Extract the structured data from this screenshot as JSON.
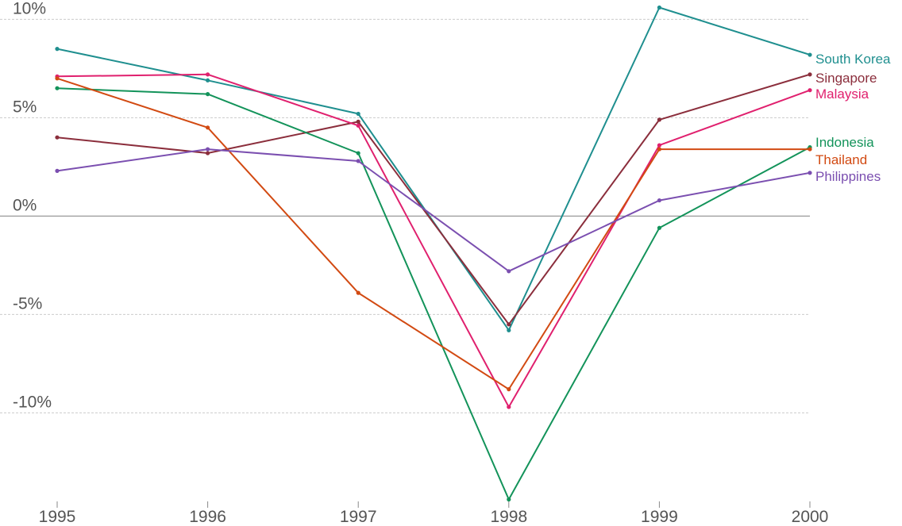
{
  "chart_data": {
    "type": "line",
    "title": "",
    "xlabel": "",
    "ylabel": "",
    "categories": [
      "1995",
      "1996",
      "1997",
      "1998",
      "1999",
      "2000"
    ],
    "ylim": [
      -14.5,
      10.5
    ],
    "y_ticks": [
      10,
      5,
      0,
      -5,
      -10
    ],
    "y_tick_labels": [
      "10%",
      "5%",
      "0%",
      "-5%",
      "-10%"
    ],
    "grid": "horizontal-dashed",
    "legend": "direct-labels-right",
    "series": [
      {
        "name": "South Korea",
        "color": "#1f8f8f",
        "values": [
          8.5,
          6.9,
          5.2,
          -5.8,
          10.6,
          8.2
        ]
      },
      {
        "name": "Singapore",
        "color": "#8b2e3c",
        "values": [
          4.0,
          3.2,
          4.8,
          -5.5,
          4.9,
          7.2
        ]
      },
      {
        "name": "Malaysia",
        "color": "#e0206e",
        "values": [
          7.1,
          7.2,
          4.6,
          -9.7,
          3.6,
          6.4
        ]
      },
      {
        "name": "Indonesia",
        "color": "#13935a",
        "values": [
          6.5,
          6.2,
          3.2,
          -14.4,
          -0.6,
          3.5
        ]
      },
      {
        "name": "Thailand",
        "color": "#d24a12",
        "values": [
          7.0,
          4.5,
          -3.9,
          -8.8,
          3.4,
          3.4
        ]
      },
      {
        "name": "Philippines",
        "color": "#7b4fb0",
        "values": [
          2.3,
          3.4,
          2.8,
          -2.8,
          0.8,
          2.2
        ]
      }
    ]
  }
}
